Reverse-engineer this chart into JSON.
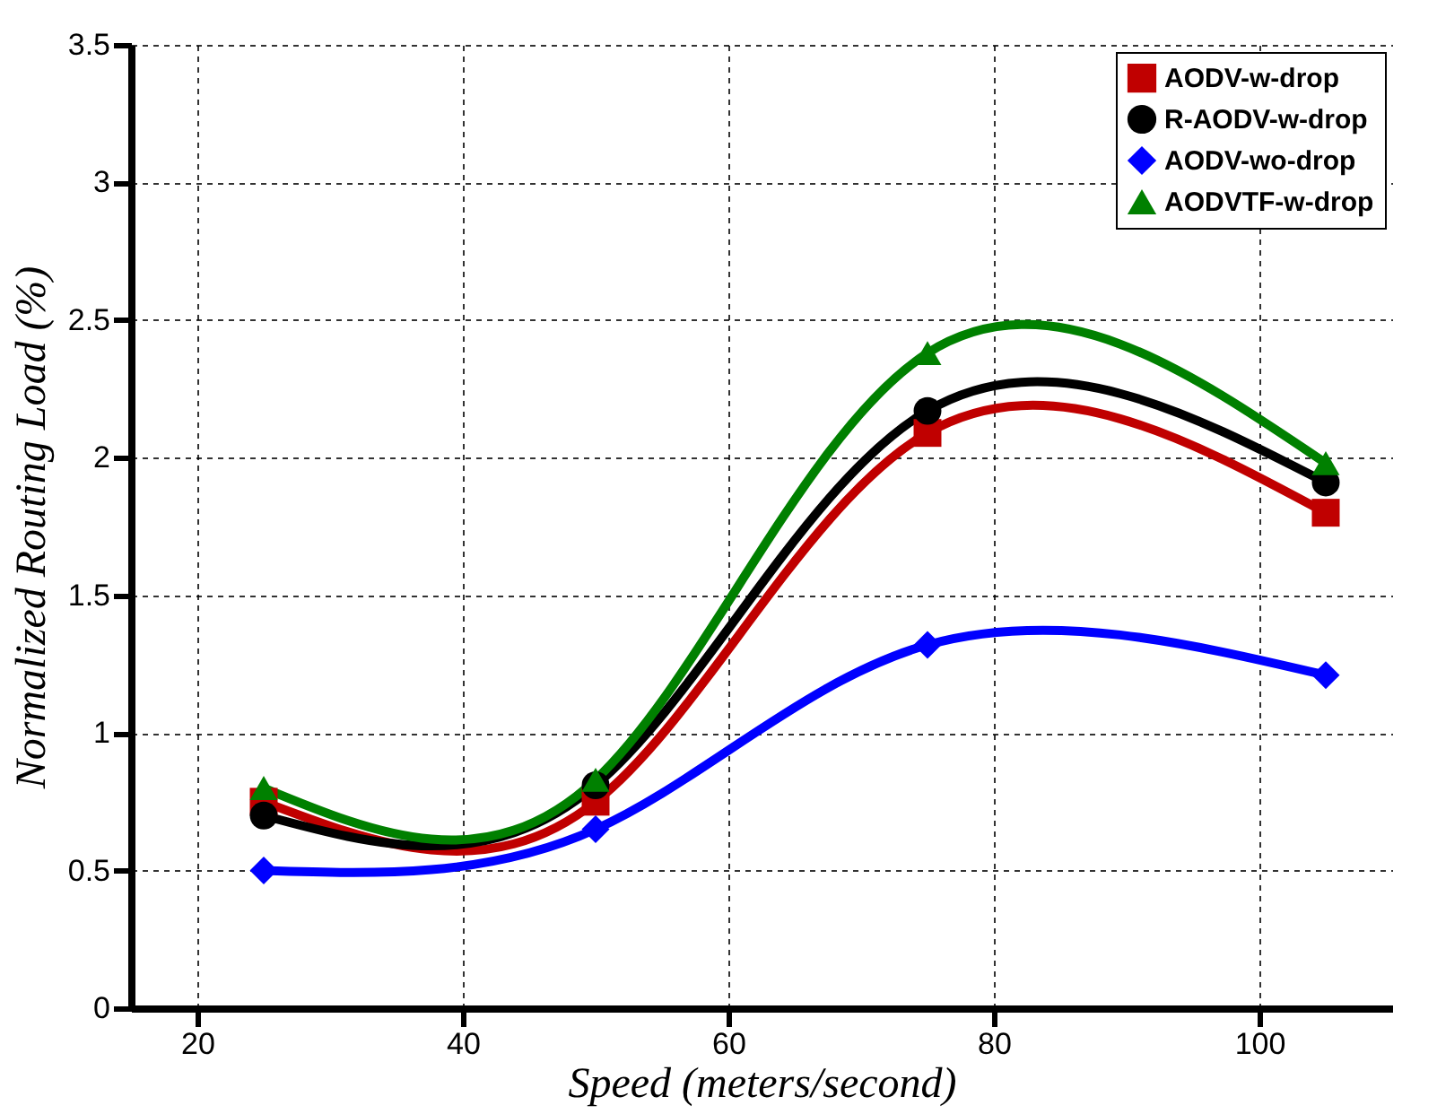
{
  "chart_data": {
    "type": "line",
    "xlabel": "Speed (meters/second)",
    "ylabel": "Normalized Routing Load  (%)",
    "x": [
      25,
      50,
      75,
      105
    ],
    "series": [
      {
        "name": "AODV-w-drop",
        "color": "#c00000",
        "marker": "square",
        "values": [
          0.75,
          0.75,
          2.09,
          1.8
        ]
      },
      {
        "name": "R-AODV-w-drop",
        "color": "#000000",
        "marker": "circle",
        "values": [
          0.7,
          0.81,
          2.17,
          1.91
        ]
      },
      {
        "name": "AODV-wo-drop",
        "color": "#0000ff",
        "marker": "diamond",
        "values": [
          0.5,
          0.65,
          1.32,
          1.21
        ]
      },
      {
        "name": "AODVTF-w-drop",
        "color": "#008000",
        "marker": "triangle",
        "values": [
          0.8,
          0.83,
          2.38,
          1.98
        ]
      }
    ],
    "xlim": [
      15,
      110
    ],
    "xticks": [
      20,
      40,
      60,
      80,
      100
    ],
    "ylim": [
      0,
      3.5
    ],
    "yticks": [
      0,
      0.5,
      1,
      1.5,
      2,
      2.5,
      3,
      3.5
    ],
    "grid": true,
    "legend": "top right",
    "line_style": "solid"
  }
}
